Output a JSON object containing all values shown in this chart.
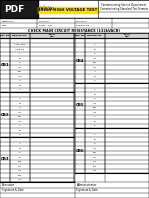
{
  "title_main": "Commissioning Service Department",
  "title_sub": "Commissioning Standard Test Formats",
  "doc_title": "132kV HIGH VOLTAGE TEST",
  "section_title": "CHECK MAIN CIRCUIT RESISTANCE (132kVACB)",
  "bay_groups_left": [
    {
      "bay": "CB1",
      "devices": [
        "",
        "AMP. TRIP",
        "AMP CB",
        "A",
        "B",
        "C",
        "A-1",
        "B-1",
        "C-1",
        "A",
        "B",
        "C"
      ]
    },
    {
      "bay": "CB2",
      "devices": [
        "",
        "A",
        "B",
        "C",
        "A-1",
        "B-1",
        "C-1",
        "A",
        "B",
        "C"
      ]
    },
    {
      "bay": "CB3",
      "devices": [
        "",
        "A",
        "B",
        "C",
        "A-1",
        "B-1",
        "C-1",
        "A-2",
        "B-2",
        "C-2"
      ]
    }
  ],
  "bay_groups_right": [
    {
      "bay": "CB4",
      "devices": [
        "",
        "A",
        "B",
        "C",
        "A-1",
        "B-1",
        "C-1",
        "A",
        "B",
        "C"
      ]
    },
    {
      "bay": "CB5",
      "devices": [
        "",
        "A",
        "B",
        "C",
        "A-1",
        "B-1",
        "C-1",
        "A",
        "B",
        "C"
      ]
    },
    {
      "bay": "CB6",
      "devices": [
        "",
        "A",
        "B",
        "C",
        "A-1",
        "B-1",
        "C-1",
        "A-2",
        "B-2",
        "C-2"
      ]
    }
  ],
  "footer_left_label": "Executor",
  "footer_right_label": "Administrator",
  "footer_date": "Signature & Date",
  "bg_color": "#ffffff",
  "logo_bg": "#1a1a1a",
  "yellow_bg": "#ffdd00",
  "gray_header": "#d0d0d0",
  "lw_thin": 0.3,
  "lw_mid": 0.5,
  "lw_thick": 0.8
}
